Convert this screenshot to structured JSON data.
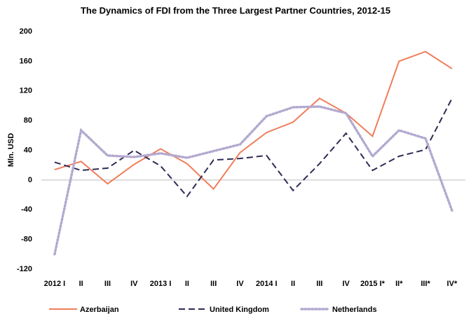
{
  "chart_data": {
    "type": "line",
    "title": "The Dynamics of FDI from the Three Largest Partner Countries, 2012-15",
    "y_label": "Mln. USD",
    "categories": [
      "2012 I",
      "II",
      "III",
      "IV",
      "2013 I",
      "II",
      "III",
      "IV",
      "2014 I",
      "II",
      "III",
      "IV",
      "2015 I*",
      "II*",
      "III*",
      "IV*"
    ],
    "series": [
      {
        "name": "Azerbaijan",
        "color": "#f07e5b",
        "dash": "solid",
        "values": [
          14,
          25,
          -5,
          21,
          42,
          22,
          -12,
          37,
          64,
          78,
          110,
          90,
          59,
          160,
          173,
          150
        ]
      },
      {
        "name": "United Kingdom",
        "color": "#2e2c54",
        "dash": "dashed",
        "values": [
          24,
          13,
          16,
          40,
          19,
          -22,
          27,
          29,
          33,
          -14,
          22,
          63,
          13,
          32,
          41,
          110
        ]
      },
      {
        "name": "Netherlands",
        "color": "#b3a9cf",
        "dash": "dotted",
        "values": [
          -100,
          67,
          33,
          31,
          36,
          30,
          39,
          48,
          86,
          98,
          99,
          90,
          32,
          67,
          56,
          -41
        ]
      }
    ],
    "ylim": [
      -120,
      200
    ],
    "yticks": [
      -120,
      -80,
      -40,
      0,
      40,
      80,
      120,
      160,
      200
    ],
    "legend": "bottom"
  }
}
